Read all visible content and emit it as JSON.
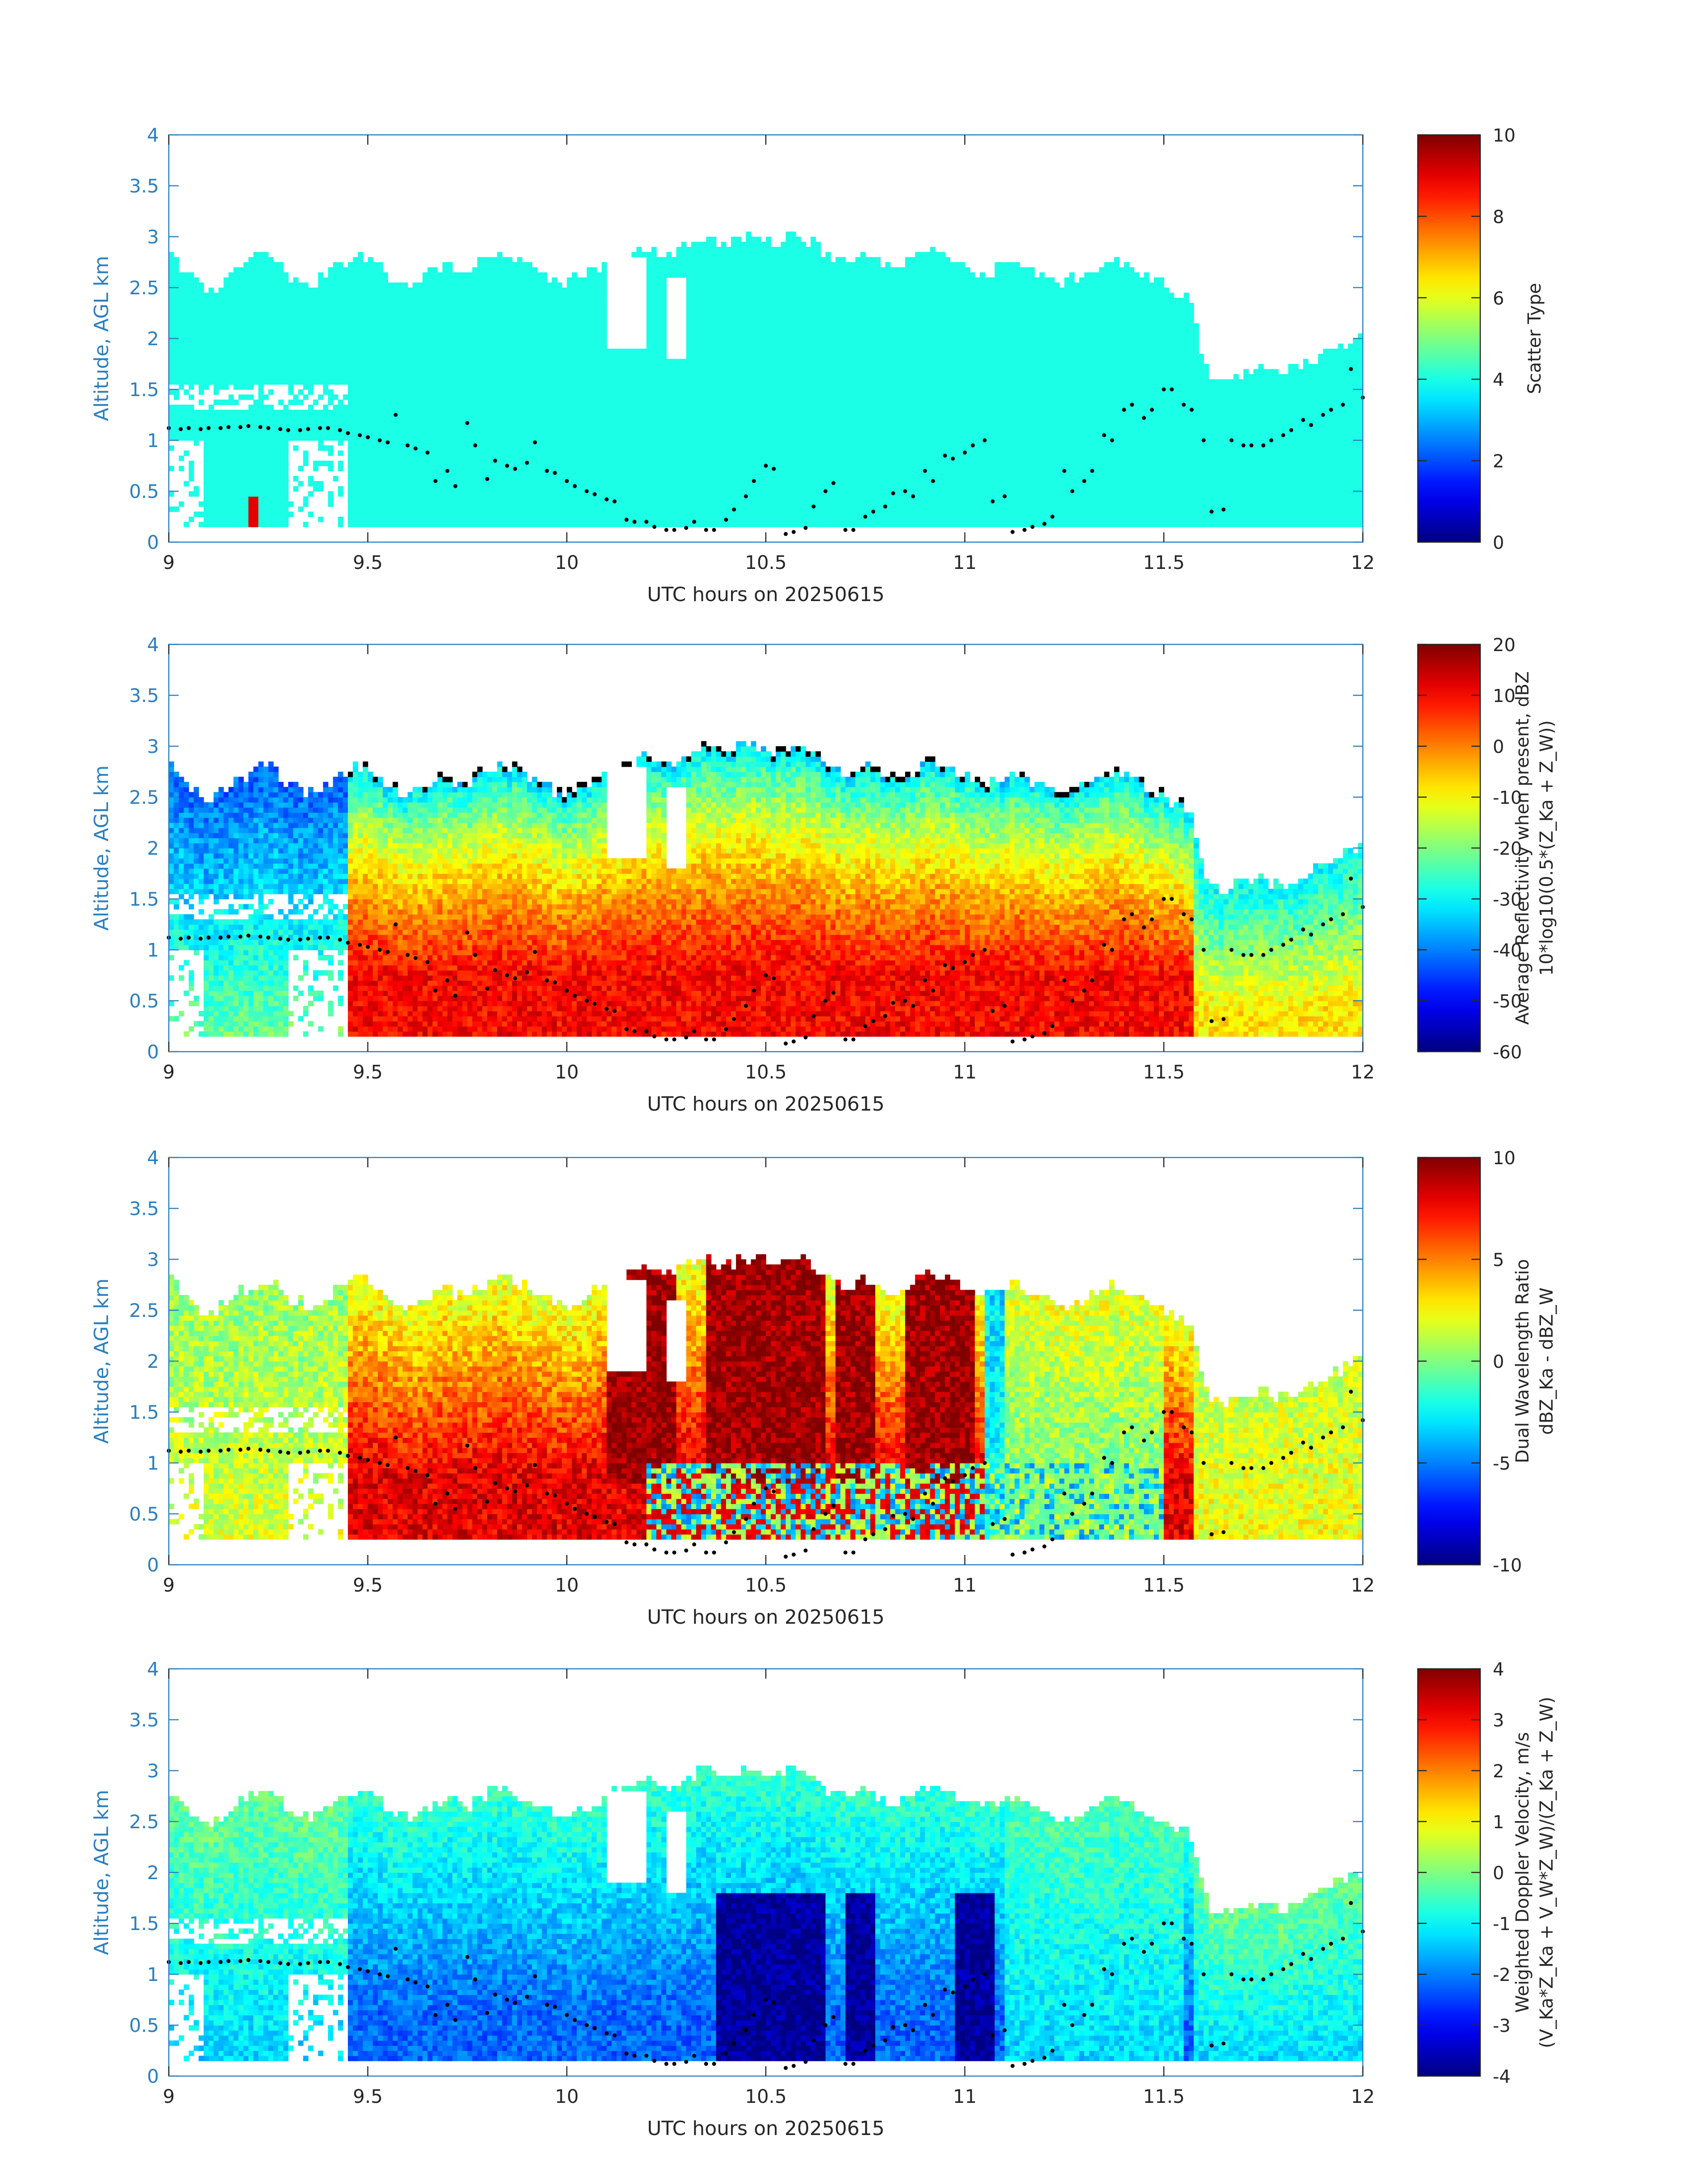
{
  "chart_data": [
    {
      "type": "heatmap",
      "xlabel": "UTC hours on 20250615",
      "ylabel": "Altitude, AGL km",
      "xlim": [
        9,
        12
      ],
      "ylim": [
        0,
        4
      ],
      "xticks": [
        "9",
        "9.5",
        "10",
        "10.5",
        "11",
        "11.5",
        "12"
      ],
      "yticks": [
        "0",
        "0.5",
        "1",
        "1.5",
        "2",
        "2.5",
        "3",
        "3.5",
        "4"
      ],
      "colorbar": {
        "label_lines": [
          "Scatter Type"
        ],
        "ticks": [
          "0",
          "2",
          "4",
          "6",
          "8",
          "10"
        ],
        "range": [
          0,
          10
        ],
        "colormap": "jet"
      },
      "field": {
        "kind": "scatter",
        "cloud_base_km": 0.15,
        "typical_value": 4,
        "outlier_value": 9,
        "outlier_region": {
          "x": [
            9.2,
            9.23
          ],
          "y_km": [
            0.15,
            0.45
          ]
        }
      },
      "grid": false,
      "legend": "none"
    },
    {
      "type": "heatmap",
      "xlabel": "UTC hours on 20250615",
      "ylabel": "Altitude, AGL km",
      "xlim": [
        9,
        12
      ],
      "ylim": [
        0,
        4
      ],
      "xticks": [
        "9",
        "9.5",
        "10",
        "10.5",
        "11",
        "11.5",
        "12"
      ],
      "yticks": [
        "0",
        "0.5",
        "1",
        "1.5",
        "2",
        "2.5",
        "3",
        "3.5",
        "4"
      ],
      "colorbar": {
        "label_lines": [
          "Average Reflectivity when present, dBZ",
          "10*log10(0.5*(Z_Ka + Z_W))"
        ],
        "ticks": [
          "-60",
          "-50",
          "-40",
          "-30",
          "-20",
          "-10",
          "0",
          "10",
          "20"
        ],
        "range": [
          -60,
          20
        ],
        "colormap": "jet"
      },
      "field": {
        "kind": "reflectivity",
        "cloud_base_km": 0.15
      },
      "grid": false,
      "legend": "none"
    },
    {
      "type": "heatmap",
      "xlabel": "UTC hours on 20250615",
      "ylabel": "Altitude, AGL km",
      "xlim": [
        9,
        12
      ],
      "ylim": [
        0,
        4
      ],
      "xticks": [
        "9",
        "9.5",
        "10",
        "10.5",
        "11",
        "11.5",
        "12"
      ],
      "yticks": [
        "0",
        "0.5",
        "1",
        "1.5",
        "2",
        "2.5",
        "3",
        "3.5",
        "4"
      ],
      "colorbar": {
        "label_lines": [
          "Dual Wavelength Ratio",
          "dBZ_Ka - dBZ_W"
        ],
        "ticks": [
          "-10",
          "-5",
          "0",
          "5",
          "10"
        ],
        "range": [
          -10,
          10
        ],
        "colormap": "jet"
      },
      "field": {
        "kind": "dwr",
        "cloud_base_km": 0.25
      },
      "grid": false,
      "legend": "none"
    },
    {
      "type": "heatmap",
      "xlabel": "UTC hours on 20250615",
      "ylabel": "Altitude, AGL km",
      "xlim": [
        9,
        12
      ],
      "ylim": [
        0,
        4
      ],
      "xticks": [
        "9",
        "9.5",
        "10",
        "10.5",
        "11",
        "11.5",
        "12"
      ],
      "yticks": [
        "0",
        "0.5",
        "1",
        "1.5",
        "2",
        "2.5",
        "3",
        "3.5",
        "4"
      ],
      "colorbar": {
        "label_lines": [
          "Weighted Doppler Velocity, m/s",
          "(V_Ka*Z_Ka + V_W*Z_W)/(Z_Ka + Z_W)"
        ],
        "ticks": [
          "-4",
          "-3",
          "-2",
          "-1",
          "0",
          "1",
          "2",
          "3",
          "4"
        ],
        "range": [
          -4,
          4
        ],
        "colormap": "jet"
      },
      "field": {
        "kind": "velocity",
        "cloud_base_km": 0.15
      },
      "grid": false,
      "legend": "none"
    }
  ],
  "cloud_top_profile": {
    "x": [
      9.0,
      9.02,
      9.05,
      9.07,
      9.1,
      9.12,
      9.15,
      9.17,
      9.2,
      9.22,
      9.25,
      9.28,
      9.3,
      9.33,
      9.35,
      9.37,
      9.4,
      9.42,
      9.45,
      9.47,
      9.5,
      9.52,
      9.55,
      9.57,
      9.6,
      9.62,
      9.65,
      9.67,
      9.7,
      9.72,
      9.75,
      9.77,
      9.8,
      9.82,
      9.85,
      9.87,
      9.9,
      9.92,
      9.95,
      9.97,
      10.0,
      10.02,
      10.05,
      10.07,
      10.1,
      10.12,
      10.15,
      10.17,
      10.2,
      10.22,
      10.25,
      10.27,
      10.3,
      10.32,
      10.35,
      10.37,
      10.4,
      10.42,
      10.45,
      10.47,
      10.5,
      10.52,
      10.55,
      10.57,
      10.6,
      10.62,
      10.65,
      10.67,
      10.7,
      10.72,
      10.75,
      10.77,
      10.8,
      10.82,
      10.85,
      10.87,
      10.9,
      10.92,
      10.95,
      10.97,
      11.0,
      11.02,
      11.05,
      11.07,
      11.1,
      11.12,
      11.15,
      11.17,
      11.2,
      11.22,
      11.25,
      11.27,
      11.3,
      11.32,
      11.35,
      11.37,
      11.4,
      11.42,
      11.45,
      11.47,
      11.5,
      11.52,
      11.55,
      11.57,
      11.6,
      11.62,
      11.65,
      11.67,
      11.7,
      11.72,
      11.75,
      11.77,
      11.8,
      11.82,
      11.85,
      11.87,
      11.9,
      11.92,
      11.95,
      11.97,
      12.0
    ],
    "y_km": [
      2.8,
      2.7,
      2.6,
      2.5,
      2.45,
      2.5,
      2.55,
      2.65,
      2.7,
      2.75,
      2.8,
      2.7,
      2.6,
      2.55,
      2.5,
      2.55,
      2.6,
      2.7,
      2.75,
      2.8,
      2.75,
      2.7,
      2.6,
      2.55,
      2.5,
      2.55,
      2.6,
      2.65,
      2.7,
      2.65,
      2.6,
      2.7,
      2.75,
      2.8,
      2.8,
      2.75,
      2.7,
      2.65,
      2.6,
      2.55,
      2.5,
      2.55,
      2.6,
      2.65,
      2.7,
      2.75,
      2.8,
      2.85,
      2.9,
      2.85,
      2.8,
      2.85,
      2.9,
      2.95,
      3.0,
      2.95,
      2.9,
      2.95,
      3.0,
      3.0,
      2.95,
      2.9,
      2.95,
      3.0,
      2.95,
      2.9,
      2.8,
      2.75,
      2.7,
      2.75,
      2.8,
      2.75,
      2.7,
      2.65,
      2.7,
      2.75,
      2.8,
      2.85,
      2.8,
      2.75,
      2.7,
      2.65,
      2.6,
      2.65,
      2.7,
      2.75,
      2.7,
      2.65,
      2.6,
      2.55,
      2.5,
      2.55,
      2.6,
      2.65,
      2.7,
      2.75,
      2.7,
      2.65,
      2.6,
      2.55,
      2.5,
      2.45,
      2.4,
      2.3,
      1.75,
      1.6,
      1.55,
      1.6,
      1.65,
      1.65,
      1.7,
      1.65,
      1.6,
      1.65,
      1.7,
      1.75,
      1.8,
      1.85,
      1.9,
      1.95,
      2.0
    ]
  },
  "dot_series": {
    "x": [
      9.0,
      9.03,
      9.05,
      9.08,
      9.1,
      9.13,
      9.15,
      9.18,
      9.2,
      9.23,
      9.25,
      9.28,
      9.3,
      9.33,
      9.35,
      9.38,
      9.4,
      9.43,
      9.45,
      9.48,
      9.5,
      9.53,
      9.55,
      9.57,
      9.6,
      9.62,
      9.65,
      9.67,
      9.7,
      9.72,
      9.75,
      9.77,
      9.8,
      9.82,
      9.85,
      9.87,
      9.9,
      9.92,
      9.95,
      9.97,
      10.0,
      10.02,
      10.05,
      10.07,
      10.1,
      10.12,
      10.15,
      10.17,
      10.2,
      10.22,
      10.25,
      10.27,
      10.3,
      10.32,
      10.35,
      10.37,
      10.4,
      10.42,
      10.45,
      10.47,
      10.5,
      10.52,
      10.55,
      10.57,
      10.6,
      10.62,
      10.65,
      10.67,
      10.7,
      10.72,
      10.75,
      10.77,
      10.8,
      10.82,
      10.85,
      10.87,
      10.9,
      10.92,
      10.95,
      10.97,
      11.0,
      11.02,
      11.05,
      11.07,
      11.1,
      11.12,
      11.15,
      11.17,
      11.2,
      11.22,
      11.25,
      11.27,
      11.3,
      11.32,
      11.35,
      11.37,
      11.4,
      11.42,
      11.45,
      11.47,
      11.5,
      11.52,
      11.55,
      11.57,
      11.6,
      11.62,
      11.65,
      11.67,
      11.7,
      11.72,
      11.75,
      11.77,
      11.8,
      11.82,
      11.85,
      11.87,
      11.9,
      11.92,
      11.95,
      11.97,
      12.0
    ],
    "y_km": [
      1.12,
      1.11,
      1.12,
      1.11,
      1.12,
      1.12,
      1.13,
      1.13,
      1.14,
      1.13,
      1.12,
      1.11,
      1.1,
      1.1,
      1.11,
      1.12,
      1.12,
      1.1,
      1.07,
      1.05,
      1.03,
      1.0,
      0.98,
      1.25,
      0.95,
      0.92,
      0.88,
      0.6,
      0.7,
      0.55,
      1.17,
      0.95,
      0.62,
      0.8,
      0.75,
      0.72,
      0.78,
      0.98,
      0.7,
      0.68,
      0.6,
      0.55,
      0.5,
      0.47,
      0.42,
      0.4,
      0.22,
      0.2,
      0.2,
      0.15,
      0.12,
      0.12,
      0.14,
      0.2,
      0.12,
      0.12,
      0.22,
      0.32,
      0.45,
      0.6,
      0.75,
      0.72,
      0.08,
      0.1,
      0.14,
      0.35,
      0.5,
      0.58,
      0.12,
      0.12,
      0.25,
      0.3,
      0.35,
      0.48,
      0.5,
      0.45,
      0.7,
      0.6,
      0.85,
      0.82,
      0.88,
      0.95,
      1.0,
      0.4,
      0.45,
      0.1,
      0.12,
      0.15,
      0.18,
      0.25,
      0.7,
      0.5,
      0.6,
      0.7,
      1.05,
      1.0,
      1.3,
      1.35,
      1.22,
      1.3,
      1.5,
      1.5,
      1.35,
      1.3,
      1.0,
      0.3,
      0.32,
      1.0,
      0.95,
      0.95,
      0.95,
      1.0,
      1.05,
      1.1,
      1.2,
      1.15,
      1.25,
      1.3,
      1.35,
      1.7,
      1.42
    ]
  }
}
